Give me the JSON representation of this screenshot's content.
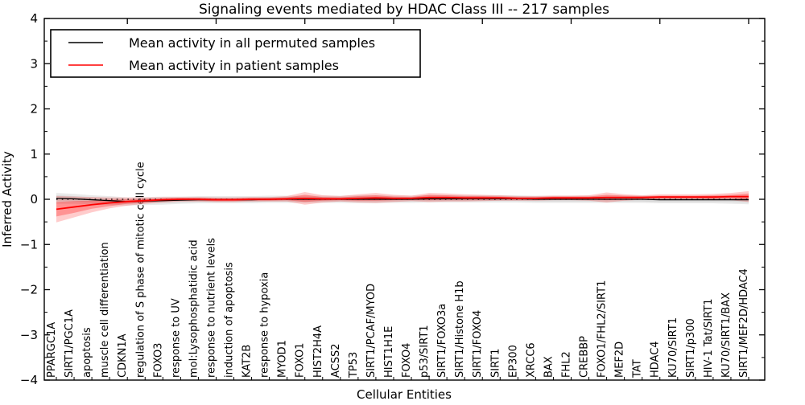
{
  "chart_data": {
    "type": "line",
    "title": "Signaling events mediated by HDAC Class III -- 217 samples",
    "xlabel": "Cellular Entities",
    "ylabel": "Inferred Activity",
    "ylim": [
      -4,
      4
    ],
    "ytick_labels": [
      "4",
      "3",
      "2",
      "1",
      "0",
      "−1",
      "−2",
      "−3",
      "−4"
    ],
    "yticks": [
      4,
      3,
      2,
      1,
      0,
      -1,
      -2,
      -3,
      -4
    ],
    "xticks_top": [
      5,
      10,
      15,
      20,
      25,
      30,
      35,
      40
    ],
    "zero_line": 0,
    "grid": false,
    "legend_position": "upper left",
    "colors": {
      "permuted": "#000000",
      "patient": "#ff0000",
      "permuted_band": "#bbbbbb",
      "patient_band": "#ff0000"
    },
    "categories": [
      "PPARGC1A",
      "SIRT1/PGC1A",
      "apoptosis",
      "muscle cell differentiation",
      "CDKN1A",
      "regulation of S phase of mitotic cell cycle",
      "FOXO3",
      "response to UV",
      "mol:Lysophosphatidic acid",
      "response to nutrient levels",
      "induction of apoptosis",
      "KAT2B",
      "response to hypoxia",
      "MYOD1",
      "FOXO1",
      "HIST2H4A",
      "ACSS2",
      "TP53",
      "SIRT1/PCAF/MYOD",
      "HIST1H1E",
      "FOXO4",
      "p53/SIRT1",
      "SIRT1/FOXO3a",
      "SIRT1/Histone H1b",
      "SIRT1/FOXO4",
      "SIRT1",
      "EP300",
      "XRCC6",
      "BAX",
      "FHL2",
      "CREBBP",
      "FOXO1/FHL2/SIRT1",
      "MEF2D",
      "TAT",
      "HDAC4",
      "KU70/SIRT1",
      "SIRT1/p300",
      "HIV-1 Tat/SIRT1",
      "KU70/SIRT1/BAX",
      "SIRT1/MEF2D/HDAC4"
    ],
    "series": [
      {
        "name": "Mean activity in all permuted samples",
        "color": "#000000",
        "values": [
          0.02,
          0.01,
          -0.01,
          -0.03,
          -0.05,
          -0.04,
          -0.03,
          -0.02,
          -0.01,
          -0.01,
          -0.01,
          -0.01,
          0,
          0,
          0,
          0,
          0,
          0,
          0,
          0,
          0,
          0.01,
          0.01,
          0.01,
          0.01,
          0.01,
          0.01,
          0,
          0,
          0,
          0,
          0,
          0,
          0,
          -0.01,
          -0.01,
          -0.01,
          -0.01,
          -0.01,
          -0.01
        ],
        "band_outer": [
          0.12,
          0.11,
          0.1,
          0.1,
          0.09,
          0.09,
          0.09,
          0.08,
          0.08,
          0.08,
          0.08,
          0.08,
          0.08,
          0.08,
          0.08,
          0.08,
          0.08,
          0.09,
          0.09,
          0.08,
          0.08,
          0.08,
          0.08,
          0.08,
          0.08,
          0.08,
          0.08,
          0.08,
          0.08,
          0.08,
          0.08,
          0.08,
          0.08,
          0.08,
          0.08,
          0.08,
          0.08,
          0.08,
          0.09,
          0.1
        ],
        "band_inner": [
          0.07,
          0.06,
          0.06,
          0.06,
          0.05,
          0.05,
          0.05,
          0.05,
          0.05,
          0.05,
          0.05,
          0.05,
          0.05,
          0.05,
          0.05,
          0.05,
          0.05,
          0.05,
          0.05,
          0.05,
          0.05,
          0.05,
          0.05,
          0.05,
          0.05,
          0.05,
          0.05,
          0.05,
          0.05,
          0.05,
          0.05,
          0.05,
          0.05,
          0.05,
          0.05,
          0.05,
          0.05,
          0.05,
          0.05,
          0.06
        ]
      },
      {
        "name": "Mean activity in patient samples",
        "color": "#ff0000",
        "values": [
          -0.22,
          -0.17,
          -0.12,
          -0.08,
          -0.05,
          -0.03,
          -0.01,
          0.0,
          0.0,
          -0.01,
          -0.01,
          0.0,
          0.0,
          0.01,
          0.02,
          0.01,
          0.01,
          0.02,
          0.03,
          0.02,
          0.02,
          0.04,
          0.04,
          0.03,
          0.03,
          0.03,
          0.02,
          0.02,
          0.03,
          0.03,
          0.03,
          0.04,
          0.04,
          0.04,
          0.05,
          0.05,
          0.05,
          0.05,
          0.06,
          0.06
        ],
        "band_outer": [
          0.29,
          0.23,
          0.17,
          0.12,
          0.09,
          0.07,
          0.06,
          0.05,
          0.05,
          0.05,
          0.05,
          0.05,
          0.05,
          0.06,
          0.14,
          0.08,
          0.06,
          0.09,
          0.11,
          0.08,
          0.06,
          0.1,
          0.09,
          0.08,
          0.07,
          0.06,
          0.05,
          0.05,
          0.05,
          0.05,
          0.06,
          0.11,
          0.07,
          0.05,
          0.06,
          0.06,
          0.06,
          0.07,
          0.08,
          0.12
        ],
        "band_inner": [
          0.16,
          0.13,
          0.09,
          0.07,
          0.05,
          0.04,
          0.03,
          0.03,
          0.03,
          0.03,
          0.03,
          0.03,
          0.03,
          0.03,
          0.08,
          0.04,
          0.03,
          0.05,
          0.06,
          0.04,
          0.03,
          0.06,
          0.05,
          0.04,
          0.04,
          0.03,
          0.03,
          0.03,
          0.03,
          0.03,
          0.03,
          0.06,
          0.04,
          0.03,
          0.03,
          0.03,
          0.03,
          0.04,
          0.04,
          0.07
        ]
      }
    ]
  }
}
